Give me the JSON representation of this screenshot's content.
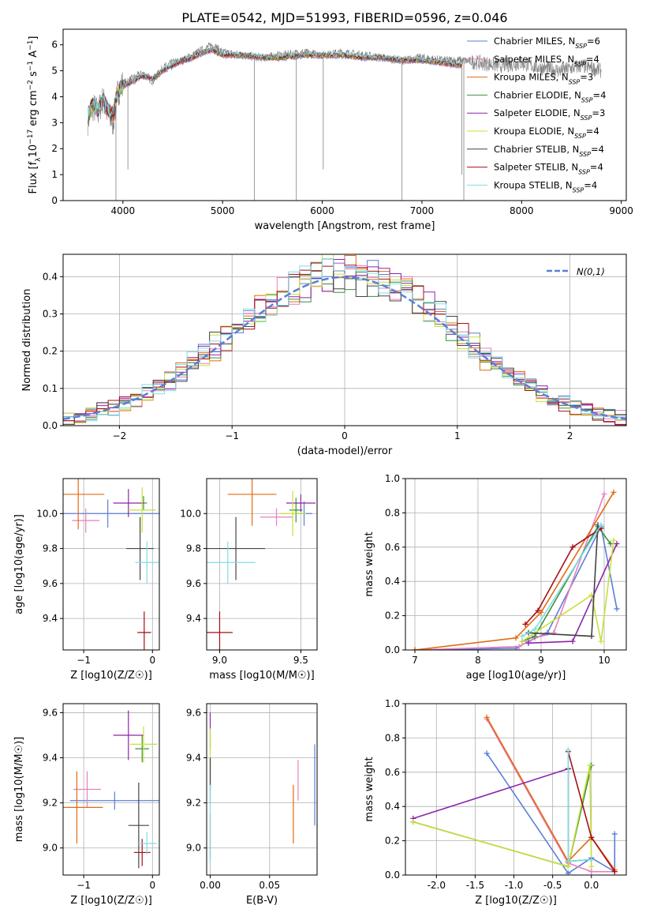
{
  "figure": {
    "title": "PLATE=0542, MJD=51993, FIBERID=0596, z=0.046"
  },
  "colors": {
    "Chabrier MILES": "#5B7FD6",
    "Salpeter MILES": "#E77FC0",
    "Kroupa MILES": "#E36A12",
    "Chabrier ELODIE": "#3E8E3E",
    "Salpeter ELODIE": "#8E24AA",
    "Kroupa ELODIE": "#C7E03A",
    "Chabrier STELIB": "#444444",
    "Salpeter STELIB": "#A50F15",
    "Kroupa STELIB": "#7FDDE6"
  },
  "chart_data": [
    {
      "id": "spectrum",
      "type": "line",
      "title": "PLATE=0542, MJD=51993, FIBERID=0596, z=0.046",
      "xlabel": "wavelength [Angstrom, rest frame]",
      "ylabel_parts": [
        "Flux [f",
        "λ",
        "10",
        "−17",
        " erg cm",
        "−2",
        " s",
        "−1",
        " A",
        "−1",
        "]"
      ],
      "xlim": [
        3400,
        9050
      ],
      "ylim": [
        0,
        6.6
      ],
      "xticks": [
        4000,
        5000,
        6000,
        7000,
        8000,
        9000
      ],
      "yticks": [
        0,
        1,
        2,
        3,
        4,
        5,
        6
      ],
      "data_color": "#808080",
      "data_x": [
        3650,
        3700,
        3750,
        3800,
        3850,
        3900,
        3950,
        4000,
        4100,
        4200,
        4300,
        4400,
        4500,
        4600,
        4700,
        4800,
        4900,
        5000,
        5200,
        5400,
        5600,
        5800,
        6000,
        6200,
        6400,
        6600,
        6800,
        7000,
        7200,
        7400,
        7600,
        7800,
        8000,
        8200,
        8400,
        8600,
        8800
      ],
      "data_y": [
        3.1,
        3.6,
        3.4,
        3.9,
        3.3,
        3.0,
        4.2,
        4.5,
        4.7,
        4.9,
        4.6,
        5.1,
        5.3,
        5.4,
        5.6,
        5.8,
        6.0,
        5.7,
        5.6,
        5.5,
        5.6,
        5.7,
        5.6,
        5.7,
        5.6,
        5.5,
        5.4,
        5.5,
        5.4,
        5.4,
        5.3,
        5.2,
        5.3,
        5.1,
        5.0,
        5.2,
        5.0
      ],
      "spikes": [
        [
          3930,
          0
        ],
        [
          4050,
          1.2
        ],
        [
          5320,
          0
        ],
        [
          5740,
          0
        ],
        [
          6010,
          1.2
        ],
        [
          6800,
          0
        ],
        [
          7400,
          1.0
        ],
        [
          7420,
          0
        ]
      ],
      "model_x": [
        3650,
        3700,
        3750,
        3800,
        3850,
        3900,
        3950,
        4000,
        4100,
        4200,
        4300,
        4400,
        4500,
        4600,
        4700,
        4800,
        4900,
        5000,
        5200,
        5400,
        5600,
        5800,
        6000,
        6200,
        6400,
        6600,
        6800,
        7000,
        7200,
        7400
      ],
      "model_y": [
        3.3,
        3.7,
        3.5,
        3.9,
        3.5,
        3.3,
        4.2,
        4.4,
        4.6,
        4.8,
        4.7,
        5.0,
        5.2,
        5.4,
        5.5,
        5.7,
        5.8,
        5.6,
        5.6,
        5.5,
        5.5,
        5.6,
        5.6,
        5.6,
        5.5,
        5.5,
        5.4,
        5.4,
        5.3,
        5.2
      ],
      "series": [
        {
          "name": "Chabrier MILES",
          "nssp": "6"
        },
        {
          "name": "Salpeter MILES",
          "nssp": "4"
        },
        {
          "name": "Kroupa MILES",
          "nssp": "3"
        },
        {
          "name": "Chabrier ELODIE",
          "nssp": "4"
        },
        {
          "name": "Salpeter ELODIE",
          "nssp": "3"
        },
        {
          "name": "Kroupa ELODIE",
          "nssp": "4"
        },
        {
          "name": "Chabrier STELIB",
          "nssp": "4"
        },
        {
          "name": "Salpeter STELIB",
          "nssp": "4"
        },
        {
          "name": "Kroupa STELIB",
          "nssp": "4"
        }
      ],
      "legend_loc": "right"
    },
    {
      "id": "residuals",
      "type": "line",
      "xlabel": "(data-model)/error",
      "ylabel": "Normed distribution",
      "xlim": [
        -2.5,
        2.5
      ],
      "ylim": [
        0,
        0.46
      ],
      "xticks": [
        -2,
        -1,
        0,
        1,
        2
      ],
      "yticks": [
        0.0,
        0.1,
        0.2,
        0.3,
        0.4
      ],
      "bin_width": 0.1,
      "reference_curve": {
        "name": "N(0,1)",
        "color": "#5B7FD6",
        "style": "dashed"
      },
      "legend_loc": "top-right"
    },
    {
      "id": "age_vs_Z",
      "type": "scatter",
      "xlabel": "Z [log10(Z/Z☉)]",
      "ylabel": "age  [log10(age/yr)]",
      "xlim": [
        -1.3,
        0.1
      ],
      "ylim": [
        9.22,
        10.2
      ],
      "xticks": [
        -1,
        0
      ],
      "yticks": [
        9.4,
        9.6,
        9.8,
        10.0
      ],
      "points": [
        {
          "name": "Chabrier MILES",
          "x": -0.65,
          "y": 10.0,
          "xerr": 0.75,
          "yerr": 0.08
        },
        {
          "name": "Salpeter MILES",
          "x": -0.97,
          "y": 9.96,
          "xerr": 0.2,
          "yerr": 0.07
        },
        {
          "name": "Kroupa MILES",
          "x": -1.08,
          "y": 10.11,
          "xerr": 0.38,
          "yerr": 0.2
        },
        {
          "name": "Chabrier ELODIE",
          "x": -0.13,
          "y": 10.06,
          "xerr": 0.05,
          "yerr": 0.04
        },
        {
          "name": "Salpeter ELODIE",
          "x": -0.35,
          "y": 10.06,
          "xerr": 0.22,
          "yerr": 0.08
        },
        {
          "name": "Kroupa ELODIE",
          "x": -0.15,
          "y": 10.02,
          "xerr": 0.2,
          "yerr": 0.13
        },
        {
          "name": "Chabrier STELIB",
          "x": -0.18,
          "y": 9.8,
          "xerr": 0.2,
          "yerr": 0.18
        },
        {
          "name": "Salpeter STELIB",
          "x": -0.12,
          "y": 9.32,
          "xerr": 0.1,
          "yerr": 0.12
        },
        {
          "name": "Kroupa STELIB",
          "x": -0.08,
          "y": 9.72,
          "xerr": 0.17,
          "yerr": 0.12
        }
      ]
    },
    {
      "id": "age_vs_mass",
      "type": "scatter",
      "xlabel": "mass [log10(M/M☉)]",
      "xlim": [
        8.92,
        9.6
      ],
      "ylim": [
        9.22,
        10.2
      ],
      "xticks": [
        9.0,
        9.5
      ],
      "yticks": [
        9.4,
        9.6,
        9.8,
        10.0
      ],
      "points": [
        {
          "name": "Chabrier MILES",
          "x": 9.52,
          "y": 10.0,
          "xerr": 0.05,
          "yerr": 0.07
        },
        {
          "name": "Salpeter MILES",
          "x": 9.35,
          "y": 9.98,
          "xerr": 0.1,
          "yerr": 0.05
        },
        {
          "name": "Kroupa MILES",
          "x": 9.2,
          "y": 10.11,
          "xerr": 0.15,
          "yerr": 0.18
        },
        {
          "name": "Chabrier ELODIE",
          "x": 9.47,
          "y": 10.02,
          "xerr": 0.04,
          "yerr": 0.07
        },
        {
          "name": "Salpeter ELODIE",
          "x": 9.5,
          "y": 10.06,
          "xerr": 0.09,
          "yerr": 0.05
        },
        {
          "name": "Kroupa ELODIE",
          "x": 9.45,
          "y": 10.0,
          "xerr": 0.08,
          "yerr": 0.13
        },
        {
          "name": "Chabrier STELIB",
          "x": 9.1,
          "y": 9.8,
          "xerr": 0.18,
          "yerr": 0.18
        },
        {
          "name": "Salpeter STELIB",
          "x": 9.0,
          "y": 9.32,
          "xerr": 0.08,
          "yerr": 0.12
        },
        {
          "name": "Kroupa STELIB",
          "x": 9.05,
          "y": 9.72,
          "xerr": 0.17,
          "yerr": 0.12
        }
      ]
    },
    {
      "id": "weight_vs_age",
      "type": "line",
      "xlabel": "age  [log10(age/yr)]",
      "ylabel": "mass weight",
      "xlim": [
        6.85,
        10.35
      ],
      "ylim": [
        0,
        1.0
      ],
      "xticks": [
        7,
        8,
        9,
        10
      ],
      "yticks": [
        0.0,
        0.2,
        0.4,
        0.6,
        0.8,
        1.0
      ],
      "series": [
        {
          "name": "Chabrier MILES",
          "x": [
            7.0,
            8.6,
            8.8,
            9.1,
            9.95,
            10.2
          ],
          "y": [
            0.0,
            0.01,
            0.05,
            0.1,
            0.72,
            0.24
          ]
        },
        {
          "name": "Salpeter MILES",
          "x": [
            7.0,
            8.65,
            8.9,
            9.2,
            10.0
          ],
          "y": [
            0.0,
            0.02,
            0.07,
            0.1,
            0.91
          ]
        },
        {
          "name": "Kroupa MILES",
          "x": [
            7.0,
            8.6,
            9.0,
            10.15
          ],
          "y": [
            0.0,
            0.07,
            0.22,
            0.92
          ]
        },
        {
          "name": "Chabrier ELODIE",
          "x": [
            8.7,
            8.9,
            9.9,
            10.1
          ],
          "y": [
            0.05,
            0.08,
            0.72,
            0.62
          ]
        },
        {
          "name": "Salpeter ELODIE",
          "x": [
            8.8,
            9.5,
            10.2
          ],
          "y": [
            0.04,
            0.05,
            0.62
          ]
        },
        {
          "name": "Kroupa ELODIE",
          "x": [
            8.7,
            9.8,
            9.95,
            10.15
          ],
          "y": [
            0.05,
            0.32,
            0.05,
            0.64
          ]
        },
        {
          "name": "Chabrier STELIB",
          "x": [
            8.8,
            9.8,
            9.9
          ],
          "y": [
            0.1,
            0.08,
            0.73
          ]
        },
        {
          "name": "Salpeter STELIB",
          "x": [
            8.75,
            8.95,
            9.5,
            9.95
          ],
          "y": [
            0.15,
            0.23,
            0.6,
            0.71
          ]
        },
        {
          "name": "Kroupa STELIB",
          "x": [
            8.7,
            8.9,
            9.95
          ],
          "y": [
            0.08,
            0.12,
            0.73
          ]
        }
      ]
    },
    {
      "id": "mass_vs_Z",
      "type": "scatter",
      "xlabel": "Z [log10(Z/Z☉)]",
      "ylabel": "mass [log10(M/M☉)]",
      "xlim": [
        -1.3,
        0.1
      ],
      "ylim": [
        8.88,
        9.64
      ],
      "xticks": [
        -1,
        0
      ],
      "yticks": [
        9.0,
        9.2,
        9.4,
        9.6
      ],
      "points": [
        {
          "name": "Chabrier MILES",
          "x": -0.55,
          "y": 9.21,
          "xerr": 0.65,
          "yerr": 0.04
        },
        {
          "name": "Salpeter MILES",
          "x": -0.95,
          "y": 9.26,
          "xerr": 0.2,
          "yerr": 0.08
        },
        {
          "name": "Kroupa MILES",
          "x": -1.1,
          "y": 9.18,
          "xerr": 0.38,
          "yerr": 0.16
        },
        {
          "name": "Chabrier ELODIE",
          "x": -0.15,
          "y": 9.44,
          "xerr": 0.1,
          "yerr": 0.06
        },
        {
          "name": "Salpeter ELODIE",
          "x": -0.35,
          "y": 9.5,
          "xerr": 0.22,
          "yerr": 0.11
        },
        {
          "name": "Kroupa ELODIE",
          "x": -0.13,
          "y": 9.46,
          "xerr": 0.2,
          "yerr": 0.08
        },
        {
          "name": "Chabrier STELIB",
          "x": -0.2,
          "y": 9.1,
          "xerr": 0.15,
          "yerr": 0.19
        },
        {
          "name": "Salpeter STELIB",
          "x": -0.15,
          "y": 8.98,
          "xerr": 0.12,
          "yerr": 0.06
        },
        {
          "name": "Kroupa STELIB",
          "x": -0.08,
          "y": 9.02,
          "xerr": 0.14,
          "yerr": 0.05
        }
      ]
    },
    {
      "id": "mass_vs_ebv",
      "type": "scatter",
      "xlabel": "E(B-V)",
      "xlim": [
        -0.003,
        0.09
      ],
      "ylim": [
        8.88,
        9.64
      ],
      "xticks": [
        0.0,
        0.05
      ],
      "yticks": [
        9.0,
        9.2,
        9.4,
        9.6
      ],
      "points": [
        {
          "name": "Chabrier MILES",
          "x": 0.088,
          "y": 9.28,
          "xerr": 0.0,
          "yerr": 0.18
        },
        {
          "name": "Salpeter MILES",
          "x": 0.074,
          "y": 9.3,
          "xerr": 0.0,
          "yerr": 0.09
        },
        {
          "name": "Kroupa MILES",
          "x": 0.07,
          "y": 9.15,
          "xerr": 0.0,
          "yerr": 0.13
        },
        {
          "name": "Chabrier ELODIE",
          "x": 0.0,
          "y": 9.33,
          "xerr": 0.0,
          "yerr": 0.07
        },
        {
          "name": "Salpeter ELODIE",
          "x": 0.0,
          "y": 9.52,
          "xerr": 0.0,
          "yerr": 0.08
        },
        {
          "name": "Kroupa ELODIE",
          "x": 0.0,
          "y": 9.43,
          "xerr": 0.0,
          "yerr": 0.1
        },
        {
          "name": "Chabrier STELIB",
          "x": 0.0,
          "y": 9.3,
          "xerr": 0.0,
          "yerr": 0.1
        },
        {
          "name": "Salpeter STELIB",
          "x": 0.0,
          "y": 9.05,
          "xerr": 0.0,
          "yerr": 0.1
        },
        {
          "name": "Kroupa STELIB",
          "x": 0.0,
          "y": 9.1,
          "xerr": 0.0,
          "yerr": 0.18
        }
      ]
    },
    {
      "id": "weight_vs_Z",
      "type": "line",
      "xlabel": "Z [log10(Z/Z☉)]",
      "ylabel": "mass weight",
      "xlim": [
        -2.4,
        0.45
      ],
      "ylim": [
        0,
        1.0
      ],
      "xticks": [
        -2.0,
        -1.5,
        -1.0,
        -0.5,
        0.0
      ],
      "yticks": [
        0.0,
        0.2,
        0.4,
        0.6,
        0.8,
        1.0
      ],
      "series": [
        {
          "name": "Chabrier MILES",
          "x": [
            -1.35,
            -0.3,
            0.0,
            0.3,
            0.3
          ],
          "y": [
            0.71,
            0.01,
            0.1,
            0.02,
            0.24
          ]
        },
        {
          "name": "Salpeter MILES",
          "x": [
            -1.35,
            -0.3,
            0.0,
            0.3
          ],
          "y": [
            0.91,
            0.07,
            0.02,
            0.02
          ]
        },
        {
          "name": "Kroupa MILES",
          "x": [
            -1.35,
            -0.3,
            0.0,
            0.3
          ],
          "y": [
            0.92,
            0.08,
            0.22,
            0.03
          ]
        },
        {
          "name": "Chabrier ELODIE",
          "x": [
            -2.3,
            -0.3,
            0.0
          ],
          "y": [
            0.31,
            0.05,
            0.64
          ]
        },
        {
          "name": "Salpeter ELODIE",
          "x": [
            -2.3,
            -0.3
          ],
          "y": [
            0.33,
            0.62
          ]
        },
        {
          "name": "Kroupa ELODIE",
          "x": [
            -2.3,
            -0.3,
            -0.02,
            0.0
          ],
          "y": [
            0.31,
            0.05,
            0.64,
            0.05
          ]
        },
        {
          "name": "Chabrier STELIB",
          "x": [
            -0.3,
            -0.3,
            0.0
          ],
          "y": [
            0.62,
            0.08,
            0.09
          ]
        },
        {
          "name": "Salpeter STELIB",
          "x": [
            -0.3,
            -0.3,
            0.0,
            0.3
          ],
          "y": [
            0.08,
            0.72,
            0.22,
            0.02
          ]
        },
        {
          "name": "Kroupa STELIB",
          "x": [
            -0.3,
            -0.3,
            0.0
          ],
          "y": [
            0.73,
            0.08,
            0.09
          ]
        }
      ]
    }
  ]
}
